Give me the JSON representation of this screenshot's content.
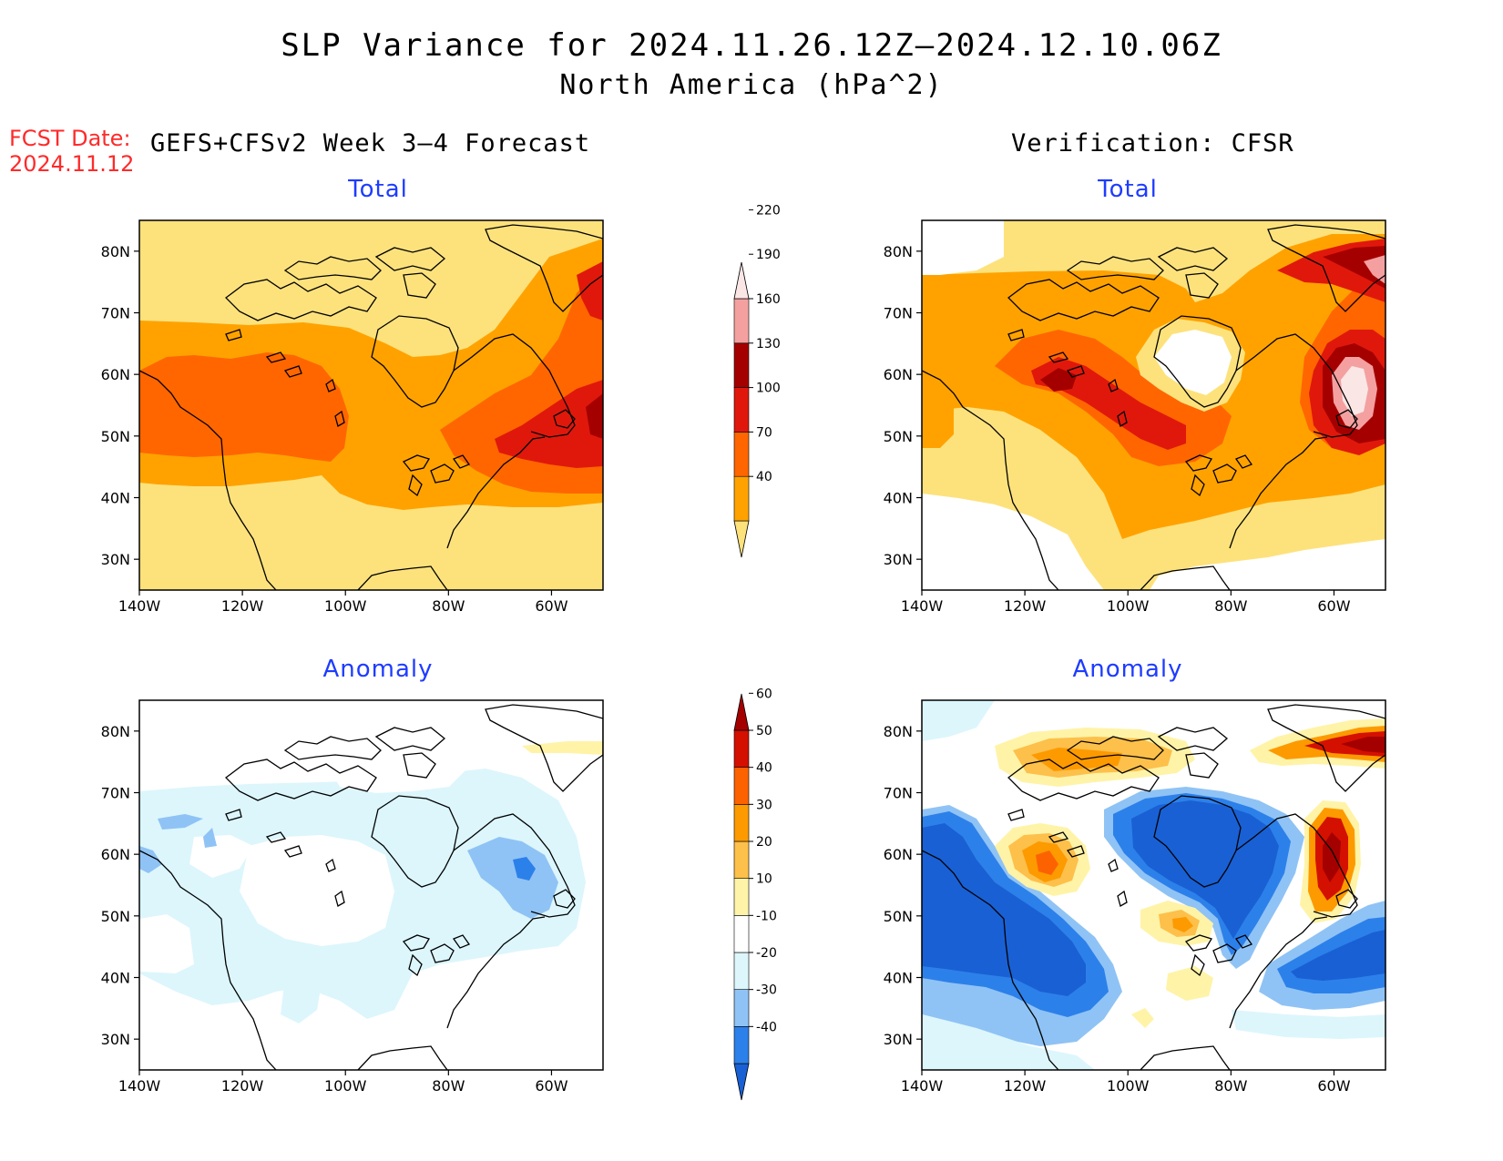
{
  "header": {
    "title": "SLP Variance for 2024.11.26.12Z–2024.12.10.06Z",
    "subtitle": "North America (hPa^2)",
    "fcst_label": "FCST Date:",
    "fcst_date": "2024.11.12",
    "left_column": "GEFS+CFSv2 Week 3–4 Forecast",
    "right_column": "Verification: CFSR"
  },
  "panels": {
    "fc_total": "Total",
    "ver_total": "Total",
    "fc_anom": "Anomaly",
    "ver_anom": "Anomaly"
  },
  "axes": {
    "lat_ticks": [
      "30N",
      "40N",
      "50N",
      "60N",
      "70N",
      "80N"
    ],
    "lon_ticks": [
      "140W",
      "120W",
      "100W",
      "80W",
      "60W"
    ],
    "lat_range": [
      25,
      85
    ],
    "lon_range": [
      -140,
      -50
    ]
  },
  "colorbars": {
    "total": {
      "labels": [
        "40",
        "70",
        "100",
        "130",
        "160",
        "190",
        "220"
      ],
      "colors": [
        "#fde27c",
        "#ffa200",
        "#ff6600",
        "#e0180c",
        "#a50000",
        "#f4a0a0",
        "#fbe6e6"
      ]
    },
    "anomaly": {
      "labels": [
        "-40",
        "-30",
        "-20",
        "-10",
        "10",
        "20",
        "30",
        "40",
        "50",
        "60"
      ],
      "colors": [
        "#1960d4",
        "#2c80ea",
        "#8fc3f5",
        "#dcf6fc",
        "#ffffff",
        "#fff3a8",
        "#fdc04a",
        "#fd9a00",
        "#fd6200",
        "#d41000",
        "#a50000"
      ]
    }
  }
}
